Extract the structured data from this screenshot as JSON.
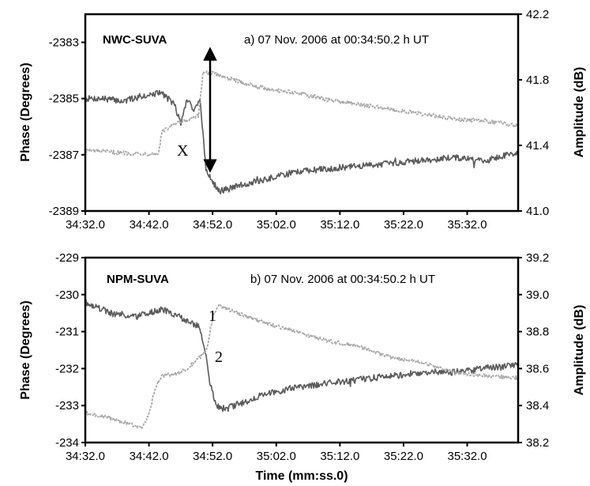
{
  "chart_data": [
    {
      "type": "line",
      "title": "NWC-SUVA",
      "annotation": "a) 07 Nov. 2006 at 00:34:50.2 h UT",
      "xlabel": "",
      "ylabel": "Phase (Degrees)",
      "y2label": "Amplitude (dB)",
      "x_ticks": [
        "34:32.0",
        "34:42.0",
        "34:52.0",
        "35:02.0",
        "35:12.0",
        "35:22.0",
        "35:32.0"
      ],
      "xlim_seconds": [
        2072,
        2140
      ],
      "ylim": [
        -2389,
        -2382
      ],
      "y_ticks": [
        "-2383",
        "-2385",
        "-2387",
        "-2389"
      ],
      "y2lim": [
        41.0,
        42.2
      ],
      "y2_ticks": [
        "42.2",
        "41.8",
        "41.4",
        "41.0"
      ],
      "marker": "X",
      "colors": {
        "phase": "#5a5a5a",
        "amplitude": "#a8a8a8"
      },
      "series": [
        {
          "axis": "left",
          "style": "solid",
          "x": [
            2072,
            2075,
            2078,
            2081,
            2084,
            2086,
            2087,
            2088,
            2089,
            2090,
            2091,
            2093,
            2096,
            2100,
            2105,
            2110,
            2115,
            2120,
            2125,
            2130,
            2135,
            2140
          ],
          "values": [
            -2385.0,
            -2385.0,
            -2385.1,
            -2384.9,
            -2384.8,
            -2385.2,
            -2385.9,
            -2385.0,
            -2385.4,
            -2385.0,
            -2387.6,
            -2388.3,
            -2388.1,
            -2387.9,
            -2387.6,
            -2387.5,
            -2387.4,
            -2387.3,
            -2387.2,
            -2387.1,
            -2387.2,
            -2386.9
          ]
        },
        {
          "axis": "right",
          "style": "dashed",
          "x": [
            2072,
            2076,
            2080,
            2083.5,
            2084,
            2086,
            2088,
            2089.8,
            2090.5,
            2093,
            2096,
            2100,
            2105,
            2110,
            2115,
            2120,
            2125,
            2130,
            2135,
            2140
          ],
          "values": [
            41.37,
            41.36,
            41.35,
            41.35,
            41.48,
            41.53,
            41.55,
            41.58,
            41.85,
            41.83,
            41.79,
            41.75,
            41.72,
            41.68,
            41.65,
            41.62,
            41.59,
            41.56,
            41.55,
            41.52
          ]
        }
      ]
    },
    {
      "type": "line",
      "title": "NPM-SUVA",
      "annotation": "b) 07 Nov. 2006 at 00:34:50.2 h UT",
      "xlabel": "Time (mm:ss.0)",
      "ylabel": "Phase (Degrees)",
      "y2label": "Amplitude (dB)",
      "x_ticks": [
        "34:32.0",
        "34:42.0",
        "34:52.0",
        "35:02.0",
        "35:12.0",
        "35:22.0",
        "35:32.0"
      ],
      "xlim_seconds": [
        2072,
        2140
      ],
      "ylim": [
        -234,
        -229
      ],
      "y_ticks": [
        "-229",
        "-230",
        "-231",
        "-232",
        "-233",
        "-234"
      ],
      "y2lim": [
        38.2,
        39.2
      ],
      "y2_ticks": [
        "39.2",
        "39.0",
        "38.8",
        "38.6",
        "38.4",
        "38.2"
      ],
      "markers": [
        "1",
        "2"
      ],
      "colors": {
        "phase": "#5a5a5a",
        "amplitude": "#a8a8a8"
      },
      "series": [
        {
          "axis": "left",
          "style": "solid",
          "x": [
            2072,
            2076,
            2080,
            2084,
            2088,
            2090,
            2090.8,
            2091.5,
            2092.5,
            2094,
            2097,
            2100,
            2105,
            2110,
            2115,
            2120,
            2125,
            2130,
            2135,
            2140
          ],
          "values": [
            -230.2,
            -230.5,
            -230.6,
            -230.4,
            -230.7,
            -230.9,
            -231.5,
            -232.3,
            -233.0,
            -233.1,
            -232.9,
            -232.7,
            -232.5,
            -232.4,
            -232.3,
            -232.2,
            -232.1,
            -232.1,
            -232.0,
            -231.9
          ]
        },
        {
          "axis": "right",
          "style": "dashed",
          "x": [
            2072,
            2075,
            2078,
            2081,
            2082,
            2083,
            2084,
            2086,
            2088,
            2090,
            2091,
            2092,
            2093,
            2096,
            2100,
            2105,
            2110,
            2115,
            2120,
            2125,
            2130,
            2135,
            2140
          ],
          "values": [
            38.36,
            38.34,
            38.31,
            38.28,
            38.35,
            38.5,
            38.56,
            38.57,
            38.6,
            38.66,
            38.69,
            38.88,
            38.94,
            38.9,
            38.85,
            38.8,
            38.75,
            38.72,
            38.66,
            38.63,
            38.58,
            38.56,
            38.55
          ]
        }
      ]
    }
  ]
}
